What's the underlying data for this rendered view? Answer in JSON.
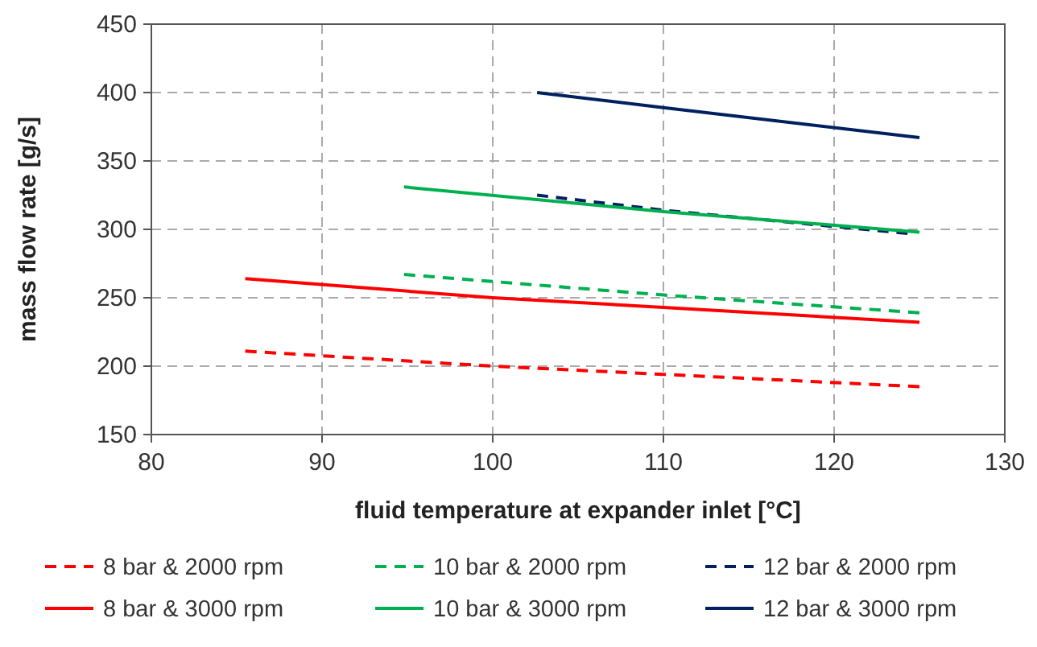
{
  "chart_data": {
    "type": "line",
    "xlabel": "fluid temperature at expander inlet [°C]",
    "ylabel": "mass flow rate [g/s]",
    "xlim": [
      80,
      130
    ],
    "xticks": [
      80,
      90,
      100,
      110,
      120,
      130
    ],
    "ylim": [
      150,
      450
    ],
    "yticks": [
      150,
      200,
      250,
      300,
      350,
      400,
      450
    ],
    "grid": true,
    "legend": "bottom",
    "marker": "none",
    "series": [
      {
        "name": "8 bar & 2000 rpm",
        "color": "#ff0000",
        "line_style": "dashed",
        "x": [
          85.5,
          100,
          110,
          125
        ],
        "values": [
          211,
          200,
          194,
          185
        ]
      },
      {
        "name": "10 bar & 2000 rpm",
        "color": "#00b050",
        "line_style": "dashed",
        "x": [
          94.8,
          110,
          125
        ],
        "values": [
          267,
          252,
          239
        ]
      },
      {
        "name": "12 bar & 2000 rpm",
        "color": "#002060",
        "line_style": "dashed",
        "x": [
          102.6,
          110,
          124.3
        ],
        "values": [
          325,
          314,
          297
        ]
      },
      {
        "name": "8 bar & 3000 rpm",
        "color": "#ff0000",
        "line_style": "solid",
        "x": [
          85.5,
          100,
          110,
          125
        ],
        "values": [
          264,
          250,
          243,
          232
        ]
      },
      {
        "name": "10 bar & 3000 rpm",
        "color": "#00b050",
        "line_style": "solid",
        "x": [
          94.8,
          110,
          125
        ],
        "values": [
          331,
          313,
          298
        ]
      },
      {
        "name": "12 bar & 3000 rpm",
        "color": "#002060",
        "line_style": "solid",
        "x": [
          102.6,
          110,
          125
        ],
        "values": [
          400,
          389,
          367
        ]
      }
    ]
  }
}
